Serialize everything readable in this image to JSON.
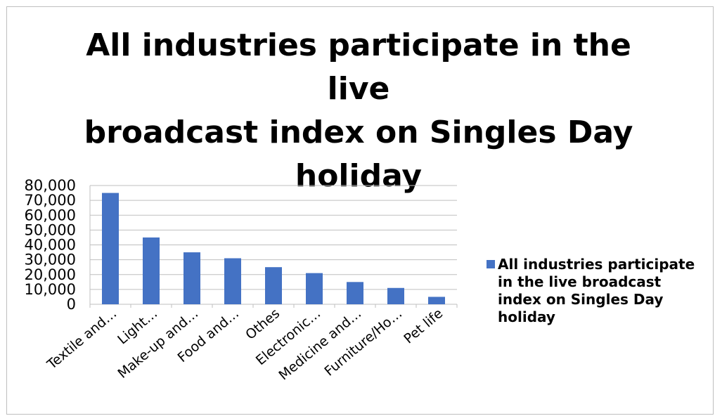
{
  "chart_data": {
    "type": "bar",
    "title_lines": [
      "All industries participate in the live",
      "broadcast index on Singles Day",
      "holiday"
    ],
    "categories": [
      "Textile and…",
      "Light…",
      "Make-up and…",
      "Food and…",
      "Othes",
      "Electronic…",
      "Medicine and…",
      "Furniture/Ho…",
      "Pet life"
    ],
    "series": [
      {
        "name_lines": [
          "All industries participate",
          "in the live broadcast",
          "index on Singles Day",
          "holiday"
        ],
        "values": [
          75000,
          45000,
          35000,
          31000,
          25000,
          21000,
          15000,
          11000,
          5000
        ]
      }
    ],
    "yticks": [
      "0",
      "10,000",
      "20,000",
      "30,000",
      "40,000",
      "50,000",
      "60,000",
      "70,000",
      "80,000"
    ],
    "ylim": [
      0,
      80000
    ],
    "grid": true,
    "legend_position": "right",
    "bar_color": "#4472c4"
  }
}
